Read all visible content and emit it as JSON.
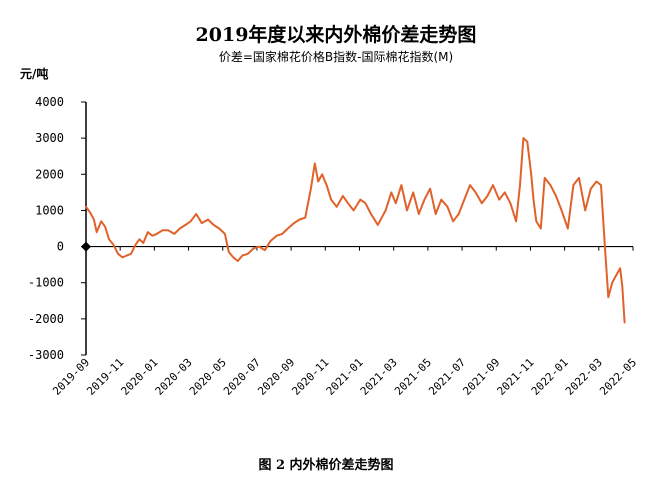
{
  "caption": "图 2   内外棉价差走势图",
  "colors": {
    "series": "#e0622a",
    "axis": "#000000"
  },
  "chart_data": {
    "type": "line",
    "title": "2019年度以来内外棉价差走势图",
    "subtitle": "价差=国家棉花价格B指数-国际棉花指数(M)",
    "ylabel": "元/吨",
    "xlabel": "",
    "ylim": [
      -3000,
      4000
    ],
    "yticks": [
      4000,
      3000,
      2000,
      1000,
      0,
      -1000,
      -2000,
      -3000
    ],
    "ytick_labels": [
      "4000",
      "3000",
      "2000",
      "1000",
      "0",
      "-1000",
      "-2000",
      "-3000"
    ],
    "xlim": [
      "2019-09-01",
      "2022-05-01"
    ],
    "xtick_labels": [
      "2019-09",
      "2019-11",
      "2020-01",
      "2020-03",
      "2020-05",
      "2020-07",
      "2020-09",
      "2020-11",
      "2021-01",
      "2021-03",
      "2021-05",
      "2021-07",
      "2021-09",
      "2021-11",
      "2022-01",
      "2022-03",
      "2022-05"
    ],
    "grid": false,
    "legend": "none",
    "series": [
      {
        "x": [
          "2019-09-01",
          "2019-09-08",
          "2019-09-15",
          "2019-09-20",
          "2019-09-28",
          "2019-10-05",
          "2019-10-12",
          "2019-10-20",
          "2019-10-28",
          "2019-11-05",
          "2019-11-12",
          "2019-11-20",
          "2019-11-28",
          "2019-12-05",
          "2019-12-12",
          "2019-12-20",
          "2019-12-28",
          "2020-01-05",
          "2020-01-15",
          "2020-01-25",
          "2020-02-05",
          "2020-02-15",
          "2020-02-25",
          "2020-03-05",
          "2020-03-15",
          "2020-03-25",
          "2020-04-05",
          "2020-04-15",
          "2020-04-25",
          "2020-05-05",
          "2020-05-12",
          "2020-05-20",
          "2020-05-28",
          "2020-06-05",
          "2020-06-15",
          "2020-06-25",
          "2020-07-05",
          "2020-07-15",
          "2020-07-25",
          "2020-08-05",
          "2020-08-15",
          "2020-08-25",
          "2020-09-05",
          "2020-09-15",
          "2020-09-25",
          "2020-10-05",
          "2020-10-12",
          "2020-10-18",
          "2020-10-25",
          "2020-11-02",
          "2020-11-10",
          "2020-11-20",
          "2020-12-01",
          "2020-12-10",
          "2020-12-20",
          "2021-01-01",
          "2021-01-10",
          "2021-01-20",
          "2021-02-01",
          "2021-02-15",
          "2021-02-25",
          "2021-03-05",
          "2021-03-15",
          "2021-03-25",
          "2021-04-05",
          "2021-04-15",
          "2021-04-25",
          "2021-05-05",
          "2021-05-15",
          "2021-05-25",
          "2021-06-05",
          "2021-06-15",
          "2021-06-25",
          "2021-07-05",
          "2021-07-15",
          "2021-07-25",
          "2021-08-05",
          "2021-08-15",
          "2021-08-25",
          "2021-09-05",
          "2021-09-15",
          "2021-09-25",
          "2021-10-05",
          "2021-10-12",
          "2021-10-18",
          "2021-10-25",
          "2021-11-01",
          "2021-11-05",
          "2021-11-10",
          "2021-11-18",
          "2021-11-25",
          "2021-12-05",
          "2021-12-15",
          "2021-12-25",
          "2022-01-05",
          "2022-01-15",
          "2022-01-25",
          "2022-02-05",
          "2022-02-15",
          "2022-02-25",
          "2022-03-05",
          "2022-03-12",
          "2022-03-18",
          "2022-03-25",
          "2022-04-01",
          "2022-04-08",
          "2022-04-12",
          "2022-04-16"
        ],
        "values": [
          1100,
          950,
          750,
          400,
          700,
          550,
          200,
          50,
          -200,
          -300,
          -250,
          -200,
          50,
          200,
          100,
          400,
          300,
          350,
          450,
          450,
          350,
          500,
          600,
          700,
          900,
          650,
          750,
          600,
          500,
          350,
          -150,
          -300,
          -400,
          -250,
          -200,
          -50,
          0,
          -100,
          150,
          300,
          350,
          500,
          650,
          750,
          800,
          1600,
          2300,
          1800,
          2000,
          1700,
          1300,
          1100,
          1400,
          1200,
          1000,
          1300,
          1200,
          900,
          600,
          1000,
          1500,
          1200,
          1700,
          1000,
          1500,
          900,
          1300,
          1600,
          900,
          1300,
          1100,
          700,
          900,
          1300,
          1700,
          1500,
          1200,
          1400,
          1700,
          1300,
          1500,
          1200,
          700,
          1700,
          3000,
          2900,
          2000,
          1300,
          700,
          500,
          1900,
          1700,
          1400,
          1000,
          500,
          1700,
          1900,
          1000,
          1600,
          1800,
          1700,
          0,
          -1400,
          -1000,
          -800,
          -600,
          -1100,
          -2100
        ]
      }
    ]
  }
}
